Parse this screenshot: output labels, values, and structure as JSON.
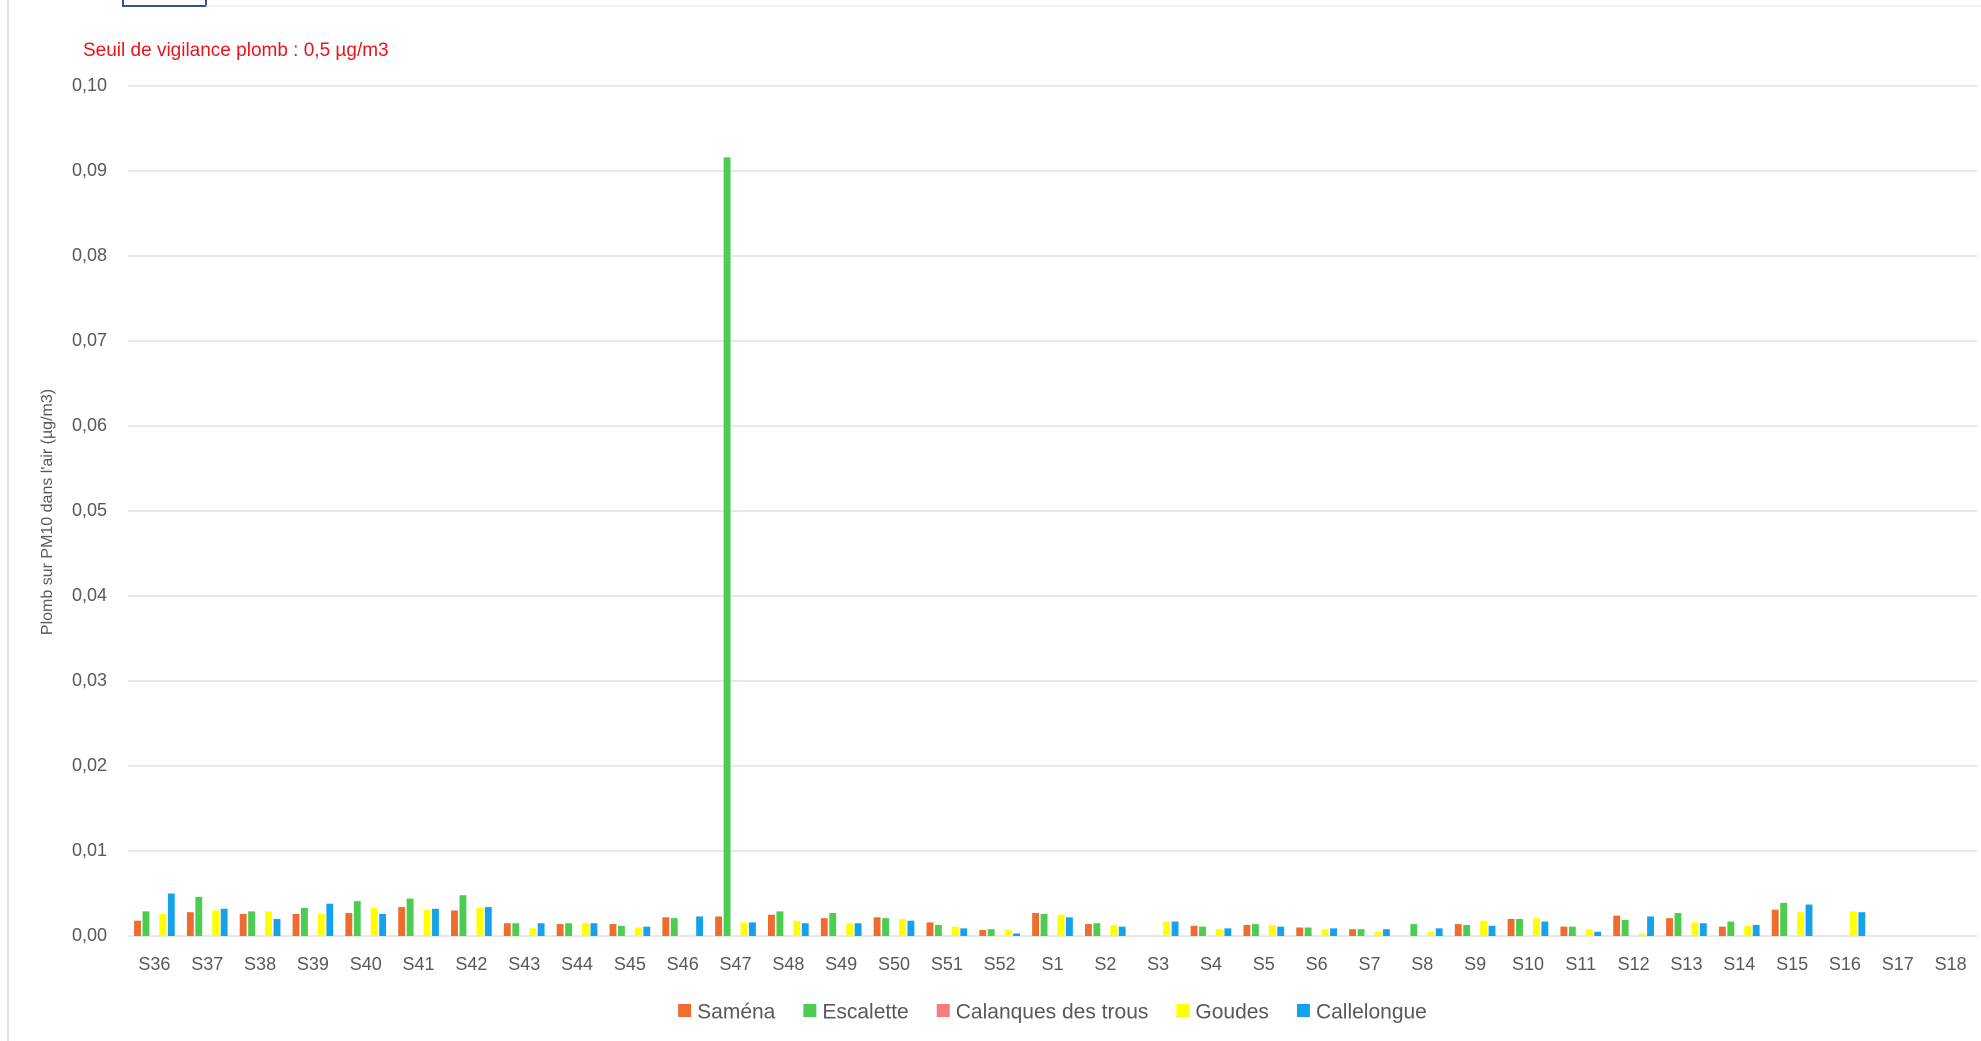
{
  "chart_data": {
    "type": "bar",
    "annotation": "Seuil de vigilance plomb : 0,5 µg/m3",
    "y_label": "Plomb sur PM10 dans l'air (µg/m3)",
    "categories": [
      "S36",
      "S37",
      "S38",
      "S39",
      "S40",
      "S41",
      "S42",
      "S43",
      "S44",
      "S45",
      "S46",
      "S47",
      "S48",
      "S49",
      "S50",
      "S51",
      "S52",
      "S1",
      "S2",
      "S3",
      "S4",
      "S5",
      "S6",
      "S7",
      "S8",
      "S9",
      "S10",
      "S11",
      "S12",
      "S13",
      "S14",
      "S15",
      "S16",
      "S17",
      "S18"
    ],
    "series": [
      {
        "name": "Saména",
        "color": "#ed6c2e",
        "values": [
          0.0018,
          0.0028,
          0.0026,
          0.0026,
          0.0027,
          0.0034,
          0.003,
          0.0015,
          0.0014,
          0.0014,
          0.0022,
          0.0023,
          0.0025,
          0.0021,
          0.0022,
          0.0016,
          0.0007,
          0.0027,
          0.0014,
          null,
          0.0012,
          0.0013,
          0.001,
          0.0008,
          null,
          0.0014,
          0.002,
          0.0011,
          0.0024,
          0.0021,
          0.0011,
          0.0031,
          null,
          null,
          null
        ]
      },
      {
        "name": "Escalette",
        "color": "#4ccd4f",
        "values": [
          0.0029,
          0.0046,
          0.0029,
          0.0033,
          0.0041,
          0.0044,
          0.0048,
          0.0015,
          0.0015,
          0.0012,
          0.0021,
          0.0916,
          0.0029,
          0.0027,
          0.0021,
          0.0013,
          0.0008,
          0.0026,
          0.0015,
          null,
          0.0011,
          0.0014,
          0.001,
          0.0008,
          0.0014,
          0.0013,
          0.002,
          0.0011,
          0.0019,
          0.0027,
          0.0017,
          0.0039,
          null,
          null,
          null
        ]
      },
      {
        "name": "Calanques des trous",
        "color": "#f47c7c",
        "values": [
          null,
          null,
          null,
          null,
          null,
          null,
          null,
          null,
          null,
          null,
          null,
          null,
          null,
          null,
          null,
          null,
          null,
          null,
          null,
          null,
          null,
          null,
          null,
          null,
          null,
          null,
          null,
          null,
          null,
          null,
          null,
          null,
          null,
          null,
          null
        ]
      },
      {
        "name": "Goudes",
        "color": "#ffff00",
        "values": [
          0.0026,
          0.003,
          0.0029,
          0.0026,
          0.0033,
          0.0031,
          0.0033,
          0.0009,
          0.0015,
          0.001,
          null,
          0.0016,
          0.0018,
          0.0015,
          0.002,
          0.0011,
          0.0007,
          0.0025,
          0.0013,
          0.0017,
          0.0008,
          0.0013,
          0.0008,
          0.0005,
          0.0005,
          0.0018,
          0.0021,
          0.0008,
          0.0003,
          0.0016,
          0.0012,
          0.0028,
          0.0029,
          null,
          null
        ]
      },
      {
        "name": "Callelongue",
        "color": "#16a2eb",
        "values": [
          0.005,
          0.0032,
          0.002,
          0.0038,
          0.0026,
          0.0032,
          0.0034,
          0.0015,
          0.0015,
          0.0011,
          0.0023,
          0.0016,
          0.0015,
          0.0015,
          0.0018,
          0.0009,
          0.0003,
          0.0022,
          0.0011,
          0.0017,
          0.0009,
          0.0011,
          0.0009,
          0.0008,
          0.0009,
          0.0012,
          0.0017,
          0.0005,
          0.0023,
          0.0015,
          0.0013,
          0.0037,
          0.0028,
          null,
          null
        ]
      }
    ],
    "ylim": [
      0,
      0.1
    ],
    "yticks": [
      {
        "value": 0,
        "label": "0,00"
      },
      {
        "value": 0.01,
        "label": "0,01"
      },
      {
        "value": 0.02,
        "label": "0,02"
      },
      {
        "value": 0.03,
        "label": "0,03"
      },
      {
        "value": 0.04,
        "label": "0,04"
      },
      {
        "value": 0.05,
        "label": "0,05"
      },
      {
        "value": 0.06,
        "label": "0,06"
      },
      {
        "value": 0.07,
        "label": "0,07"
      },
      {
        "value": 0.08,
        "label": "0,08"
      },
      {
        "value": 0.09,
        "label": "0,09"
      },
      {
        "value": 0.1,
        "label": "0,10"
      }
    ],
    "grid": true,
    "legend": "bottom"
  }
}
